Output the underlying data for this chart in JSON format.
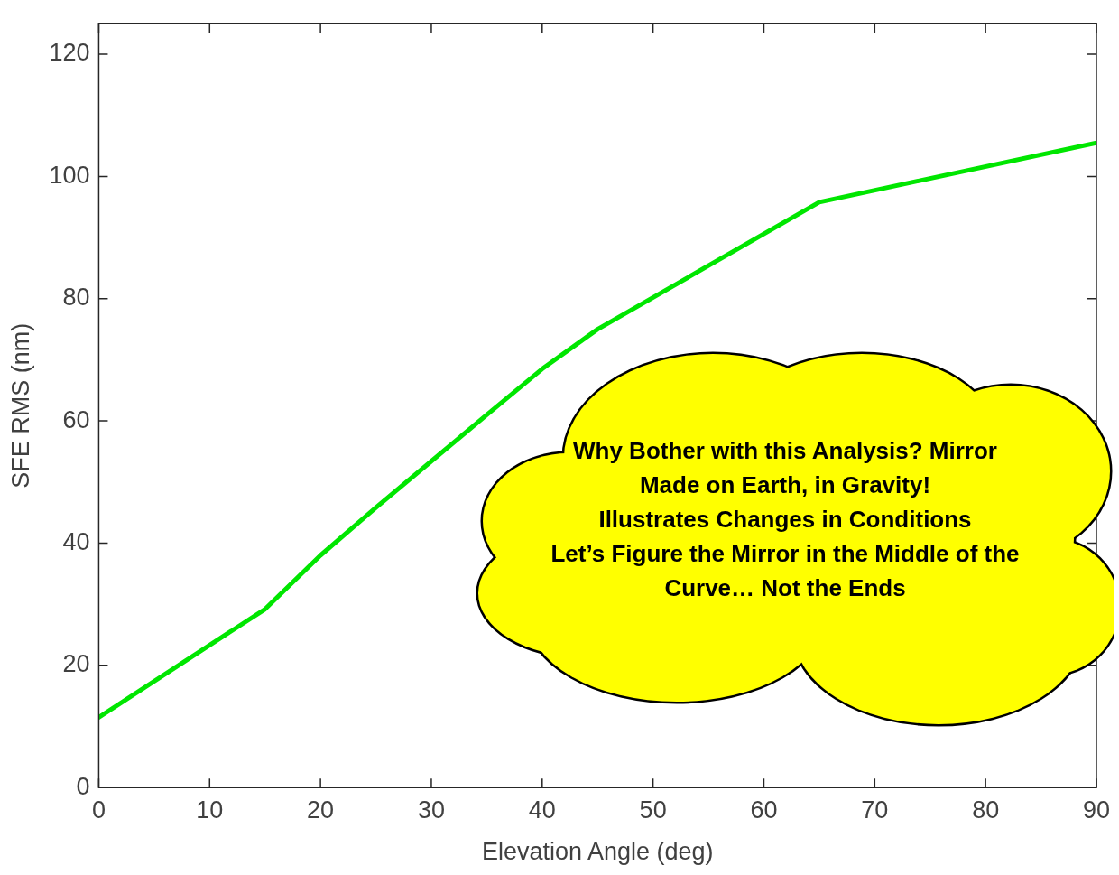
{
  "chart_data": {
    "type": "line",
    "xlabel": "Elevation Angle (deg)",
    "ylabel": "SFE RMS (nm)",
    "x": [
      0,
      15,
      20,
      25,
      30,
      35,
      40,
      45,
      65,
      90
    ],
    "series": [
      {
        "color": "#00e600",
        "values": [
          11.5,
          29.2,
          38,
          45.8,
          53.4,
          61,
          68.5,
          75,
          95.8,
          105.5
        ]
      }
    ],
    "xlim": [
      0,
      90
    ],
    "xticks": [
      0,
      10,
      20,
      30,
      40,
      50,
      60,
      70,
      80,
      90
    ],
    "ylim": [
      0,
      125
    ],
    "yticks": [
      0,
      20,
      40,
      60,
      80,
      100,
      120
    ],
    "grid": false,
    "legend": false,
    "marker": "none",
    "line_style": "solid",
    "annotations": [
      "Why Bother with this Analysis?  Mirror",
      "Made on Earth, in Gravity!",
      "Illustrates Changes in Conditions",
      "Let’s Figure the Mirror in the Middle of the",
      "Curve… Not the Ends"
    ]
  }
}
